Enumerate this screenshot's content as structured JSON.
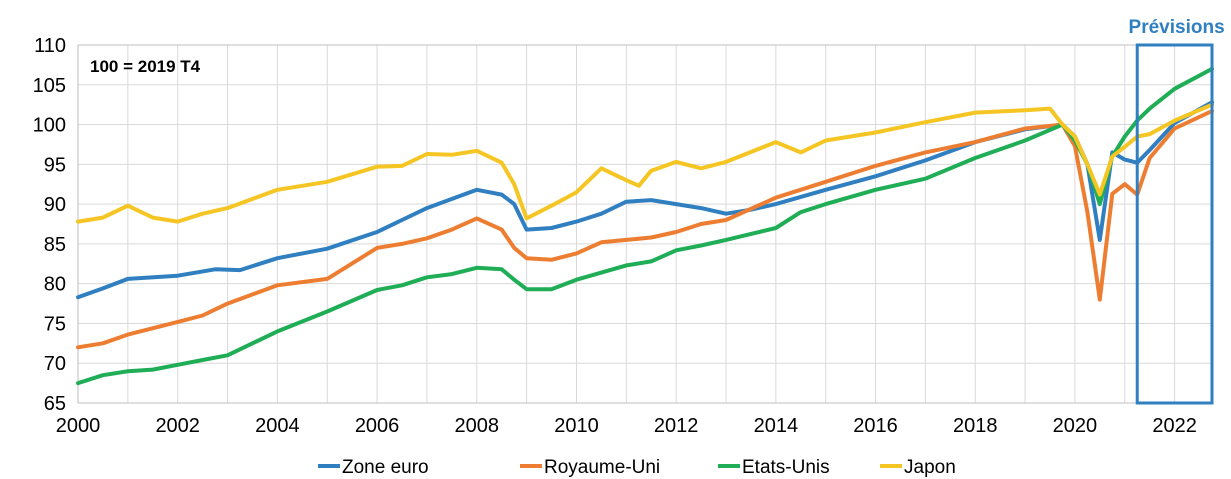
{
  "chart_data": {
    "type": "line",
    "note": "100 = 2019 T4",
    "forecast_label": "Prévisions",
    "forecast_start": 2021.25,
    "xlim": [
      2000,
      2022.75
    ],
    "ylim": [
      65,
      110
    ],
    "x_ticks": [
      "2000",
      "2002",
      "2004",
      "2006",
      "2008",
      "2010",
      "2012",
      "2014",
      "2016",
      "2018",
      "2020",
      "2022"
    ],
    "y_ticks": [
      "65",
      "70",
      "75",
      "80",
      "85",
      "90",
      "95",
      "100",
      "105",
      "110"
    ],
    "grid": true,
    "legend_position": "bottom",
    "series": [
      {
        "name": "Zone euro",
        "color": "#2f7fc1",
        "points": [
          [
            2000,
            78.3
          ],
          [
            2000.5,
            79.4
          ],
          [
            2001,
            80.6
          ],
          [
            2002,
            81.0
          ],
          [
            2002.75,
            81.8
          ],
          [
            2003.25,
            81.7
          ],
          [
            2004,
            83.2
          ],
          [
            2005,
            84.4
          ],
          [
            2006,
            86.5
          ],
          [
            2006.5,
            88.0
          ],
          [
            2007,
            89.5
          ],
          [
            2008,
            91.8
          ],
          [
            2008.5,
            91.2
          ],
          [
            2008.75,
            90.0
          ],
          [
            2009,
            86.8
          ],
          [
            2009.5,
            87.0
          ],
          [
            2010,
            87.8
          ],
          [
            2010.5,
            88.8
          ],
          [
            2011,
            90.3
          ],
          [
            2011.5,
            90.5
          ],
          [
            2012,
            90.0
          ],
          [
            2012.5,
            89.5
          ],
          [
            2013,
            88.8
          ],
          [
            2013.5,
            89.3
          ],
          [
            2014,
            90.0
          ],
          [
            2015,
            91.8
          ],
          [
            2016,
            93.5
          ],
          [
            2017,
            95.5
          ],
          [
            2018,
            97.8
          ],
          [
            2019,
            99.4
          ],
          [
            2019.75,
            100
          ],
          [
            2020,
            98.5
          ],
          [
            2020.25,
            95.0
          ],
          [
            2020.5,
            85.5
          ],
          [
            2020.75,
            96.5
          ],
          [
            2021,
            95.6
          ],
          [
            2021.25,
            95.2
          ],
          [
            2021.5,
            96.8
          ],
          [
            2022,
            100.2
          ],
          [
            2022.75,
            102.8
          ]
        ]
      },
      {
        "name": "Royaume-Uni",
        "color": "#ed7d31",
        "points": [
          [
            2000,
            72.0
          ],
          [
            2000.5,
            72.5
          ],
          [
            2001,
            73.6
          ],
          [
            2002,
            75.2
          ],
          [
            2002.5,
            76.0
          ],
          [
            2003,
            77.5
          ],
          [
            2004,
            79.8
          ],
          [
            2005,
            80.6
          ],
          [
            2006,
            84.5
          ],
          [
            2006.5,
            85.0
          ],
          [
            2007,
            85.7
          ],
          [
            2007.5,
            86.8
          ],
          [
            2008,
            88.2
          ],
          [
            2008.5,
            86.8
          ],
          [
            2008.75,
            84.5
          ],
          [
            2009,
            83.2
          ],
          [
            2009.5,
            83.0
          ],
          [
            2010,
            83.8
          ],
          [
            2010.5,
            85.2
          ],
          [
            2011,
            85.5
          ],
          [
            2011.5,
            85.8
          ],
          [
            2012,
            86.5
          ],
          [
            2012.5,
            87.5
          ],
          [
            2013,
            88.0
          ],
          [
            2014,
            90.8
          ],
          [
            2015,
            92.8
          ],
          [
            2016,
            94.8
          ],
          [
            2017,
            96.5
          ],
          [
            2018,
            97.8
          ],
          [
            2019,
            99.5
          ],
          [
            2019.75,
            100
          ],
          [
            2020,
            97.3
          ],
          [
            2020.25,
            89.0
          ],
          [
            2020.5,
            78.0
          ],
          [
            2020.75,
            91.3
          ],
          [
            2021,
            92.5
          ],
          [
            2021.25,
            91.2
          ],
          [
            2021.5,
            95.8
          ],
          [
            2022,
            99.5
          ],
          [
            2022.75,
            101.7
          ]
        ]
      },
      {
        "name": "Etats-Unis",
        "color": "#1fad55",
        "points": [
          [
            2000,
            67.5
          ],
          [
            2000.5,
            68.5
          ],
          [
            2001,
            69.0
          ],
          [
            2001.5,
            69.2
          ],
          [
            2002,
            69.8
          ],
          [
            2002.5,
            70.4
          ],
          [
            2003,
            71.0
          ],
          [
            2004,
            74.0
          ],
          [
            2005,
            76.5
          ],
          [
            2006,
            79.2
          ],
          [
            2006.5,
            79.8
          ],
          [
            2007,
            80.8
          ],
          [
            2007.5,
            81.2
          ],
          [
            2008,
            82.0
          ],
          [
            2008.5,
            81.8
          ],
          [
            2008.75,
            80.5
          ],
          [
            2009,
            79.3
          ],
          [
            2009.5,
            79.3
          ],
          [
            2010,
            80.5
          ],
          [
            2011,
            82.3
          ],
          [
            2011.5,
            82.8
          ],
          [
            2012,
            84.2
          ],
          [
            2012.5,
            84.8
          ],
          [
            2013,
            85.5
          ],
          [
            2014,
            87.0
          ],
          [
            2014.5,
            89.0
          ],
          [
            2015,
            90.0
          ],
          [
            2016,
            91.8
          ],
          [
            2017,
            93.2
          ],
          [
            2018,
            95.8
          ],
          [
            2019,
            98.0
          ],
          [
            2019.75,
            100
          ],
          [
            2020,
            98.0
          ],
          [
            2020.25,
            95.0
          ],
          [
            2020.5,
            90.0
          ],
          [
            2020.75,
            96.0
          ],
          [
            2021,
            98.5
          ],
          [
            2021.25,
            100.5
          ],
          [
            2021.5,
            102.0
          ],
          [
            2022,
            104.5
          ],
          [
            2022.75,
            107.0
          ]
        ]
      },
      {
        "name": "Japon",
        "color": "#f5c623",
        "points": [
          [
            2000,
            87.8
          ],
          [
            2000.5,
            88.3
          ],
          [
            2001,
            89.8
          ],
          [
            2001.5,
            88.3
          ],
          [
            2002,
            87.8
          ],
          [
            2002.5,
            88.8
          ],
          [
            2003,
            89.5
          ],
          [
            2004,
            91.8
          ],
          [
            2005,
            92.8
          ],
          [
            2006,
            94.7
          ],
          [
            2006.5,
            94.8
          ],
          [
            2007,
            96.3
          ],
          [
            2007.5,
            96.2
          ],
          [
            2008,
            96.7
          ],
          [
            2008.5,
            95.2
          ],
          [
            2008.75,
            92.5
          ],
          [
            2009,
            88.2
          ],
          [
            2009.5,
            89.8
          ],
          [
            2010,
            91.5
          ],
          [
            2010.5,
            94.5
          ],
          [
            2011,
            93.0
          ],
          [
            2011.25,
            92.3
          ],
          [
            2011.5,
            94.2
          ],
          [
            2012,
            95.3
          ],
          [
            2012.5,
            94.5
          ],
          [
            2013,
            95.3
          ],
          [
            2014,
            97.8
          ],
          [
            2014.5,
            96.5
          ],
          [
            2015,
            98.0
          ],
          [
            2016,
            99.0
          ],
          [
            2017,
            100.3
          ],
          [
            2018,
            101.5
          ],
          [
            2019,
            101.8
          ],
          [
            2019.5,
            102.0
          ],
          [
            2019.75,
            100
          ],
          [
            2020,
            98.5
          ],
          [
            2020.25,
            95.0
          ],
          [
            2020.5,
            91.2
          ],
          [
            2020.75,
            96.0
          ],
          [
            2021,
            97.2
          ],
          [
            2021.25,
            98.5
          ],
          [
            2021.5,
            98.8
          ],
          [
            2022,
            100.5
          ],
          [
            2022.75,
            102.5
          ]
        ]
      }
    ]
  }
}
